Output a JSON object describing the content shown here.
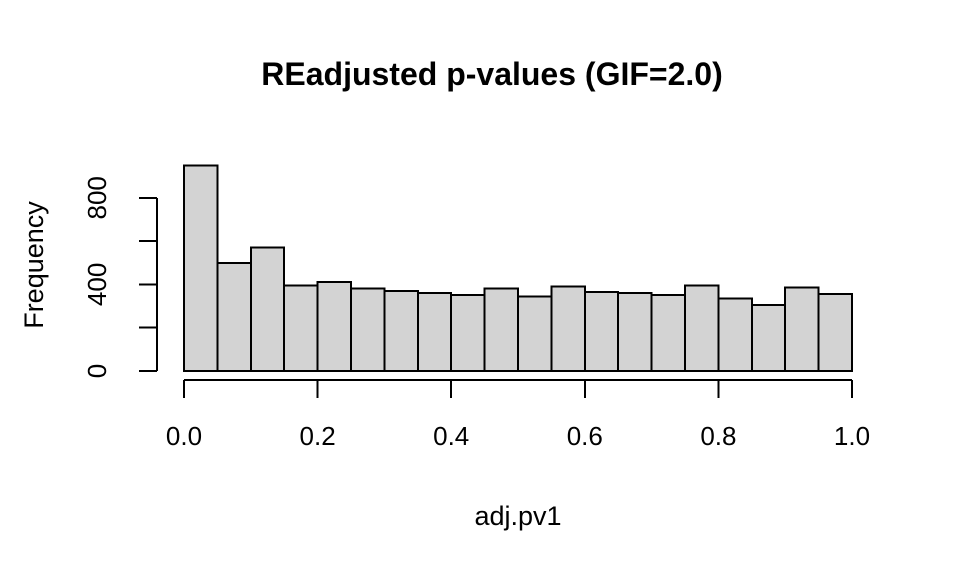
{
  "chart_data": {
    "type": "bar",
    "subtype": "histogram",
    "title": "REadjusted p-values (GIF=2.0)",
    "xlabel": "adj.pv1",
    "ylabel": "Frequency",
    "xlim": [
      0.0,
      1.0
    ],
    "ylim": [
      0,
      1000
    ],
    "grid": false,
    "legend": "none",
    "bin_width": 0.05,
    "bin_edges": [
      0.0,
      0.05,
      0.1,
      0.15,
      0.2,
      0.25,
      0.3,
      0.35,
      0.4,
      0.45,
      0.5,
      0.55,
      0.6,
      0.65,
      0.7,
      0.75,
      0.8,
      0.85,
      0.9,
      0.95,
      1.0
    ],
    "counts": [
      950,
      500,
      570,
      395,
      410,
      380,
      370,
      360,
      350,
      380,
      345,
      390,
      365,
      360,
      350,
      395,
      335,
      305,
      385,
      355
    ],
    "x_ticks": [
      0.0,
      0.2,
      0.4,
      0.6,
      0.8,
      1.0
    ],
    "x_tick_labels": [
      "0.0",
      "0.2",
      "0.4",
      "0.6",
      "0.8",
      "1.0"
    ],
    "y_ticks": [
      0,
      200,
      400,
      600,
      800
    ],
    "y_tick_labels": [
      "0",
      "",
      "400",
      "",
      "800"
    ],
    "colors": {
      "background": "#ffffff",
      "bar_fill": "#d3d3d3",
      "bar_stroke": "#000000",
      "axis": "#000000",
      "text": "#000000"
    }
  }
}
